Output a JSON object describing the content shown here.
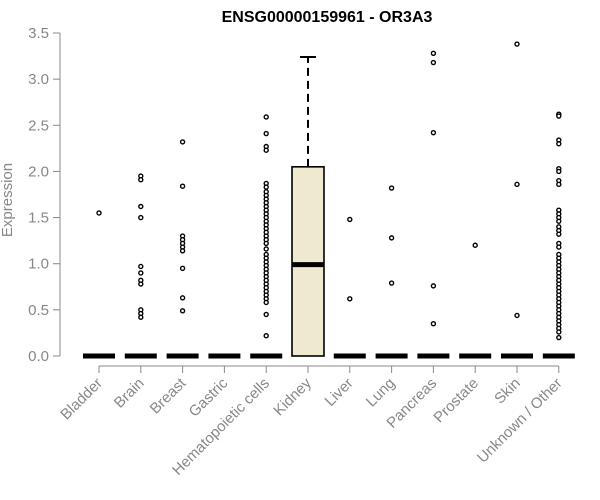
{
  "chart_data": {
    "type": "boxplot",
    "title": "ENSG00000159961 - OR3A3",
    "ylabel": "Expression",
    "xlabel": "",
    "ylim": [
      0,
      3.5
    ],
    "yticks": [
      0.0,
      0.5,
      1.0,
      1.5,
      2.0,
      2.5,
      3.0,
      3.5
    ],
    "ytick_labels": [
      "0.0",
      "0.5",
      "1.0",
      "1.5",
      "2.0",
      "2.5",
      "3.0",
      "3.5"
    ],
    "grid": false,
    "box_fill": "#efe9d0",
    "categories": [
      "Bladder",
      "Brain",
      "Breast",
      "Gastric",
      "Hematopoietic cells",
      "Kidney",
      "Liver",
      "Lung",
      "Pancreas",
      "Prostate",
      "Skin",
      "Unknown / Other"
    ],
    "boxes": [
      {
        "category": "Bladder",
        "q1": 0,
        "median": 0,
        "q3": 0,
        "whisker_low": 0,
        "whisker_high": 0,
        "outliers": [
          1.55
        ]
      },
      {
        "category": "Brain",
        "q1": 0,
        "median": 0,
        "q3": 0,
        "whisker_low": 0,
        "whisker_high": 0,
        "outliers": [
          1.95,
          1.91,
          1.62,
          1.5,
          0.97,
          0.9,
          0.82,
          0.78,
          0.5,
          0.46,
          0.42
        ]
      },
      {
        "category": "Breast",
        "q1": 0,
        "median": 0,
        "q3": 0,
        "whisker_low": 0,
        "whisker_high": 0,
        "outliers": [
          2.32,
          1.84,
          1.3,
          1.26,
          1.22,
          1.18,
          1.14,
          0.95,
          0.63,
          0.49
        ]
      },
      {
        "category": "Gastric",
        "q1": 0,
        "median": 0,
        "q3": 0,
        "whisker_low": 0,
        "whisker_high": 0,
        "outliers": []
      },
      {
        "category": "Hematopoietic cells",
        "q1": 0,
        "median": 0,
        "q3": 0,
        "whisker_low": 0,
        "whisker_high": 0,
        "outliers": [
          2.59,
          2.41,
          2.27,
          2.23,
          1.87,
          1.83,
          1.78,
          1.74,
          1.7,
          1.66,
          1.62,
          1.58,
          1.54,
          1.5,
          1.46,
          1.42,
          1.38,
          1.34,
          1.3,
          1.26,
          1.22,
          1.16,
          1.1,
          1.06,
          1.02,
          0.98,
          0.94,
          0.9,
          0.86,
          0.82,
          0.78,
          0.74,
          0.7,
          0.66,
          0.62,
          0.58,
          0.45,
          0.22
        ]
      },
      {
        "category": "Kidney",
        "q1": 0,
        "median": 0.99,
        "q3": 2.05,
        "whisker_low": 0,
        "whisker_high": 3.24,
        "outliers": []
      },
      {
        "category": "Liver",
        "q1": 0,
        "median": 0,
        "q3": 0,
        "whisker_low": 0,
        "whisker_high": 0,
        "outliers": [
          1.48,
          0.62
        ]
      },
      {
        "category": "Lung",
        "q1": 0,
        "median": 0,
        "q3": 0,
        "whisker_low": 0,
        "whisker_high": 0,
        "outliers": [
          1.82,
          1.28,
          0.79
        ]
      },
      {
        "category": "Pancreas",
        "q1": 0,
        "median": 0,
        "q3": 0,
        "whisker_low": 0,
        "whisker_high": 0,
        "outliers": [
          3.28,
          3.18,
          2.42,
          0.76,
          0.35
        ]
      },
      {
        "category": "Prostate",
        "q1": 0,
        "median": 0,
        "q3": 0,
        "whisker_low": 0,
        "whisker_high": 0,
        "outliers": [
          1.2
        ]
      },
      {
        "category": "Skin",
        "q1": 0,
        "median": 0,
        "q3": 0,
        "whisker_low": 0,
        "whisker_high": 0,
        "outliers": [
          3.38,
          1.86,
          0.44
        ]
      },
      {
        "category": "Unknown / Other",
        "q1": 0,
        "median": 0,
        "q3": 0,
        "whisker_low": 0,
        "whisker_high": 0,
        "outliers": [
          2.62,
          2.6,
          2.34,
          2.3,
          2.03,
          2.0,
          1.9,
          1.86,
          1.58,
          1.54,
          1.5,
          1.46,
          1.4,
          1.36,
          1.32,
          1.22,
          1.18,
          1.1,
          1.06,
          1.02,
          0.98,
          0.94,
          0.9,
          0.86,
          0.82,
          0.78,
          0.74,
          0.7,
          0.66,
          0.62,
          0.58,
          0.54,
          0.5,
          0.46,
          0.42,
          0.38,
          0.34,
          0.3,
          0.26,
          0.2
        ]
      }
    ]
  }
}
